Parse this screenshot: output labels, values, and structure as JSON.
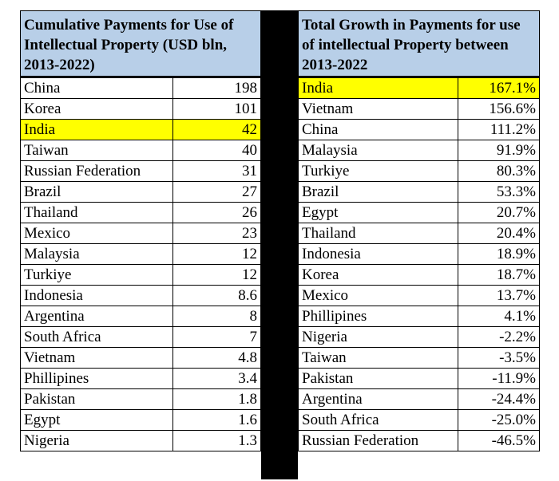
{
  "chart_data": [
    {
      "type": "table",
      "title": "Cumulative Payments for Use of Intellectual Property (USD bln, 2013-2022)",
      "rows": [
        {
          "country": "China",
          "value": "198"
        },
        {
          "country": "Korea",
          "value": "101"
        },
        {
          "country": "India",
          "value": "42",
          "highlight": true
        },
        {
          "country": "Taiwan",
          "value": "40"
        },
        {
          "country": "Russian Federation",
          "value": "31"
        },
        {
          "country": "Brazil",
          "value": "27"
        },
        {
          "country": "Thailand",
          "value": "26"
        },
        {
          "country": "Mexico",
          "value": "23"
        },
        {
          "country": "Malaysia",
          "value": "12"
        },
        {
          "country": "Turkiye",
          "value": "12"
        },
        {
          "country": "Indonesia",
          "value": "8.6"
        },
        {
          "country": "Argentina",
          "value": "8"
        },
        {
          "country": "South Africa",
          "value": "7"
        },
        {
          "country": "Vietnam",
          "value": "4.8"
        },
        {
          "country": "Phillipines",
          "value": "3.4"
        },
        {
          "country": "Pakistan",
          "value": "1.8"
        },
        {
          "country": "Egypt",
          "value": "1.6"
        },
        {
          "country": "Nigeria",
          "value": "1.3"
        }
      ]
    },
    {
      "type": "table",
      "title": "Total Growth in Payments for use of intellectual Property between 2013-2022",
      "rows": [
        {
          "country": "India",
          "value": "167.1%",
          "highlight": true
        },
        {
          "country": "Vietnam",
          "value": "156.6%"
        },
        {
          "country": "China",
          "value": "111.2%"
        },
        {
          "country": "Malaysia",
          "value": "91.9%"
        },
        {
          "country": "Turkiye",
          "value": "80.3%"
        },
        {
          "country": "Brazil",
          "value": "53.3%"
        },
        {
          "country": "Egypt",
          "value": "20.7%"
        },
        {
          "country": "Thailand",
          "value": "20.4%"
        },
        {
          "country": "Indonesia",
          "value": "18.9%"
        },
        {
          "country": "Korea",
          "value": "18.7%"
        },
        {
          "country": "Mexico",
          "value": "13.7%"
        },
        {
          "country": "Phillipines",
          "value": "4.1%"
        },
        {
          "country": "Nigeria",
          "value": "-2.2%"
        },
        {
          "country": "Taiwan",
          "value": "-3.5%"
        },
        {
          "country": "Pakistan",
          "value": "-11.9%"
        },
        {
          "country": "Argentina",
          "value": "-24.4%"
        },
        {
          "country": "South Africa",
          "value": "-25.0%"
        },
        {
          "country": "Russian Federation",
          "value": "-46.5%"
        }
      ]
    }
  ],
  "colors": {
    "header_bg": "#b8cfe8",
    "highlight": "#ffff00",
    "divider": "#000000"
  }
}
